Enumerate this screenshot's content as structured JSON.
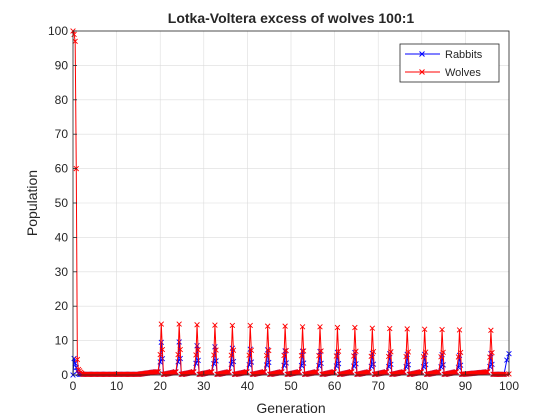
{
  "chart_data": {
    "type": "line",
    "title": "Lotka-Voltera excess of wolves 100:1",
    "xlabel": "Generation",
    "ylabel": "Population",
    "xlim": [
      0,
      100
    ],
    "ylim": [
      0,
      100
    ],
    "xticks": [
      0,
      10,
      20,
      30,
      40,
      50,
      60,
      70,
      80,
      90,
      100
    ],
    "yticks": [
      0,
      10,
      20,
      30,
      40,
      50,
      60,
      70,
      80,
      90,
      100
    ],
    "grid": true,
    "legend_location": "top-right",
    "marker": "x",
    "step": 0.25,
    "series": [
      {
        "name": "Rabbits",
        "color": "#0000ff",
        "initial": [
          0,
          4.8,
          3.4,
          2.2,
          1.1,
          0.4,
          0.2
        ],
        "floor": 0.2,
        "rise_start": 15,
        "rise_end": 19,
        "rise_to": 0.9,
        "spike_peaks": [
          9.5,
          9.6,
          8.5,
          8.2,
          7.8,
          7.5,
          7.3,
          7.0,
          6.9,
          6.8,
          6.6,
          6.5,
          6.3,
          6.2,
          6.0,
          6.0,
          5.9,
          5.7,
          6.2
        ],
        "end_value": 6.2
      },
      {
        "name": "Wolves",
        "color": "#ff0000",
        "initial": [
          100,
          99,
          97,
          60,
          4.5,
          1.6,
          1.2,
          0.8,
          0.5
        ],
        "floor": 0.2,
        "rise_start": 15,
        "rise_end": 19,
        "rise_to": 0.9,
        "spike_peaks": [
          14.8,
          14.8,
          14.6,
          14.5,
          14.4,
          14.4,
          14.2,
          14.2,
          14.0,
          14.0,
          13.8,
          13.8,
          13.6,
          13.5,
          13.4,
          13.3,
          13.2,
          13.1,
          13.0
        ],
        "end_value": 0.3
      }
    ],
    "spike_times": [
      20.0,
      24.1,
      28.2,
      32.3,
      36.3,
      40.4,
      44.4,
      48.4,
      52.4,
      56.4,
      60.4,
      64.4,
      68.4,
      72.4,
      76.4,
      80.4,
      84.4,
      88.4,
      95.6
    ]
  }
}
